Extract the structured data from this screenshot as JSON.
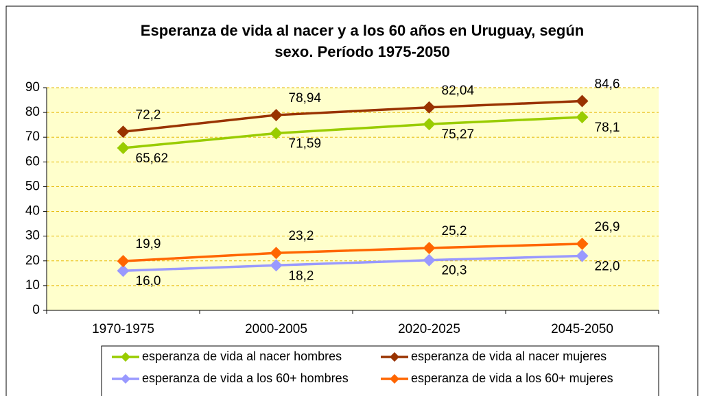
{
  "chart_data": {
    "type": "line",
    "title": "Esperanza de vida al nacer y a los 60 años en Uruguay, según sexo. Período 1975-2050",
    "categories": [
      "1970-1975",
      "2000-2005",
      "2020-2025",
      "2045-2050"
    ],
    "series": [
      {
        "name": "esperanza de vida al nacer hombres",
        "color": "#99cc00",
        "values": [
          65.62,
          71.59,
          75.27,
          78.1
        ],
        "value_labels": [
          "65,62",
          "71,59",
          "75,27",
          "78,1"
        ]
      },
      {
        "name": "esperanza de vida al nacer mujeres",
        "color": "#993300",
        "values": [
          72.2,
          78.94,
          82.04,
          84.6
        ],
        "value_labels": [
          "72,2",
          "78,94",
          "82,04",
          "84,6"
        ]
      },
      {
        "name": "esperanza de vida a los 60+ hombres",
        "color": "#9999ff",
        "values": [
          16.0,
          18.2,
          20.3,
          22.0
        ],
        "value_labels": [
          "16,0",
          "18,2",
          "20,3",
          "22,0"
        ]
      },
      {
        "name": "esperanza de vida a los 60+ mujeres",
        "color": "#ff6600",
        "values": [
          19.9,
          23.2,
          25.2,
          26.9
        ],
        "value_labels": [
          "19,9",
          "23,2",
          "25,2",
          "26,9"
        ]
      }
    ],
    "ylim": [
      0,
      90
    ],
    "yticks": [
      0,
      10,
      20,
      30,
      40,
      50,
      60,
      70,
      80,
      90
    ],
    "grid": true,
    "legend": "bottom"
  }
}
